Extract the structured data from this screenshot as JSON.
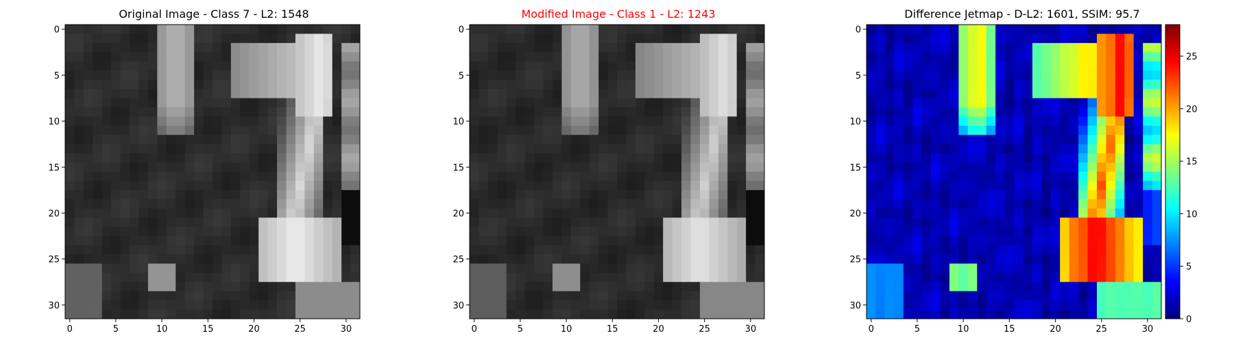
{
  "figure": {
    "panels": [
      {
        "title": "Original Image - Class 7 - L2: 1548",
        "title_color": "#000000"
      },
      {
        "title": "Modified Image - Class 1 - L2: 1243",
        "title_color": "#ff0000"
      },
      {
        "title": "Difference Jetmap - D-L2: 1601, SSIM: 95.7",
        "title_color": "#000000"
      }
    ]
  },
  "chart_data": [
    {
      "type": "heatmap",
      "title": "Original Image - Class 7 - L2: 1548",
      "colormap": "gray",
      "shape": [
        32,
        32
      ],
      "xticks": [
        0,
        5,
        10,
        15,
        20,
        25,
        30
      ],
      "yticks": [
        0,
        5,
        10,
        15,
        20,
        25,
        30
      ],
      "xlim": [
        -0.5,
        31.5
      ],
      "ylim": [
        31.5,
        -0.5
      ],
      "content": "low-resolution grayscale image: dark background with two bright vertical strokes (cols 10-13 rows 0-11; cols 22-28 rows 1-27 with a horizontal bar at rows 3-7 and a wide bright base at rows 22-27) and a small bright blob near col 10 row 27"
    },
    {
      "type": "heatmap",
      "title": "Modified Image - Class 1 - L2: 1243",
      "colormap": "gray",
      "shape": [
        32,
        32
      ],
      "xticks": [
        0,
        5,
        10,
        15,
        20,
        25,
        30
      ],
      "yticks": [
        0,
        5,
        10,
        15,
        20,
        25,
        30
      ],
      "xlim": [
        -0.5,
        31.5
      ],
      "ylim": [
        31.5,
        -0.5
      ],
      "content": "near-identical to the original with slightly dimmer strokes"
    },
    {
      "type": "heatmap",
      "title": "Difference Jetmap - D-L2: 1601, SSIM: 95.7",
      "colormap": "jet",
      "shape": [
        32,
        32
      ],
      "xticks": [
        0,
        5,
        10,
        15,
        20,
        25,
        30
      ],
      "yticks": [
        0,
        5,
        10,
        15,
        20,
        25,
        30
      ],
      "xlim": [
        -0.5,
        31.5
      ],
      "ylim": [
        31.5,
        -0.5
      ],
      "colorbar": {
        "min": 0,
        "max": 28,
        "ticks": [
          0,
          5,
          10,
          15,
          20,
          25
        ]
      },
      "content": "low differences (blue) over background; high differences (yellow to red, up to ~28) along the right stroke, peaking near rows 3-7 cols 22-27 and rows 20-27 cols 22-25"
    }
  ]
}
